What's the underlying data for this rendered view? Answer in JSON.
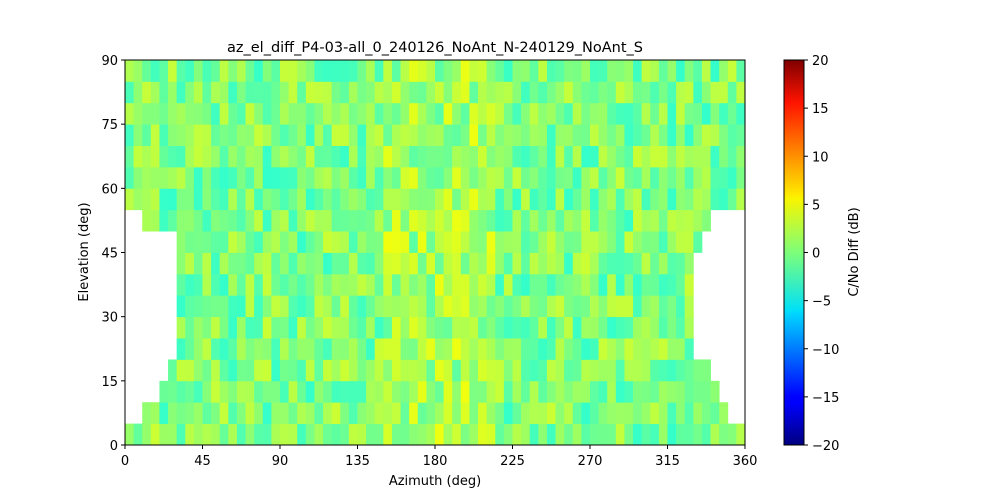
{
  "chart_data": {
    "type": "heatmap",
    "title": "az_el_diff_P4-03-all_0_240126_NoAnt_N-240129_NoAnt_S",
    "xlabel": "Azimuth (deg)",
    "ylabel": "Elevation (deg)",
    "colorbar_label": "C/No Diff (dB)",
    "colormap": "jet",
    "xlim": [
      0,
      360
    ],
    "ylim": [
      0,
      90
    ],
    "clim": [
      -20,
      20
    ],
    "xticks": [
      0,
      45,
      90,
      135,
      180,
      225,
      270,
      315,
      360
    ],
    "yticks": [
      0,
      15,
      30,
      45,
      60,
      75,
      90
    ],
    "cticks": [
      -20,
      -15,
      -10,
      -5,
      0,
      5,
      10,
      15,
      20
    ],
    "grid": false,
    "bin_width_deg": 5,
    "bin_height_deg": 5,
    "row_extents": [
      {
        "el": [
          0,
          5
        ],
        "az": [
          0,
          360
        ]
      },
      {
        "el": [
          5,
          10
        ],
        "az": [
          10,
          350
        ]
      },
      {
        "el": [
          10,
          15
        ],
        "az": [
          20,
          345
        ]
      },
      {
        "el": [
          15,
          20
        ],
        "az": [
          25,
          340
        ]
      },
      {
        "el": [
          20,
          25
        ],
        "az": [
          30,
          330
        ]
      },
      {
        "el": [
          25,
          30
        ],
        "az": [
          30,
          330
        ]
      },
      {
        "el": [
          30,
          35
        ],
        "az": [
          30,
          330
        ]
      },
      {
        "el": [
          35,
          40
        ],
        "az": [
          30,
          330
        ]
      },
      {
        "el": [
          40,
          45
        ],
        "az": [
          30,
          330
        ]
      },
      {
        "el": [
          45,
          50
        ],
        "az": [
          30,
          335
        ]
      },
      {
        "el": [
          50,
          55
        ],
        "az": [
          10,
          340
        ]
      },
      {
        "el": [
          55,
          60
        ],
        "az": [
          0,
          360
        ]
      },
      {
        "el": [
          60,
          65
        ],
        "az": [
          0,
          360
        ]
      },
      {
        "el": [
          65,
          70
        ],
        "az": [
          0,
          360
        ]
      },
      {
        "el": [
          70,
          75
        ],
        "az": [
          0,
          360
        ]
      },
      {
        "el": [
          75,
          80
        ],
        "az": [
          0,
          360
        ]
      },
      {
        "el": [
          80,
          85
        ],
        "az": [
          0,
          360
        ]
      },
      {
        "el": [
          85,
          90
        ],
        "az": [
          0,
          360
        ]
      }
    ],
    "notable_cells": [
      {
        "az": 5,
        "el": 2.5,
        "value": 9
      },
      {
        "az": 355,
        "el": 2.5,
        "value": 7
      },
      {
        "az": 15,
        "el": 7.5,
        "value": -5
      },
      {
        "az": 345,
        "el": 7.5,
        "value": 4
      },
      {
        "az": 290,
        "el": 7.5,
        "value": 4
      },
      {
        "az": 140,
        "el": 12.5,
        "value": 7
      },
      {
        "az": 170,
        "el": 17.5,
        "value": 8
      },
      {
        "az": 115,
        "el": 22.5,
        "value": -7
      },
      {
        "az": 110,
        "el": 27.5,
        "value": -8
      },
      {
        "az": 160,
        "el": 37.5,
        "value": 6
      },
      {
        "az": 330,
        "el": 42.5,
        "value": -6
      },
      {
        "az": 170,
        "el": 47.5,
        "value": 6
      },
      {
        "az": 15,
        "el": 52.5,
        "value": 9
      },
      {
        "az": 155,
        "el": 52.5,
        "value": 5
      },
      {
        "az": 335,
        "el": 57.5,
        "value": -7
      },
      {
        "az": 15,
        "el": 62.5,
        "value": 3
      },
      {
        "az": 175,
        "el": 72.5,
        "value": -10
      },
      {
        "az": 200,
        "el": 72.5,
        "value": 5
      },
      {
        "az": 160,
        "el": 87.5,
        "value": -8
      },
      {
        "az": 165,
        "el": 82.5,
        "value": -6
      },
      {
        "az": 345,
        "el": 82.5,
        "value": 7
      },
      {
        "az": 305,
        "el": 87.5,
        "value": 4
      },
      {
        "az": 355,
        "el": 87.5,
        "value": -5
      }
    ],
    "empty_cells": [
      {
        "az": 105,
        "el": 72.5
      },
      {
        "az": 180,
        "el": 72.5
      },
      {
        "az": 195,
        "el": 77.5
      },
      {
        "az": 20,
        "el": 62.5
      },
      {
        "az": 145,
        "el": 62.5
      },
      {
        "az": 325,
        "el": 57.5
      }
    ]
  }
}
